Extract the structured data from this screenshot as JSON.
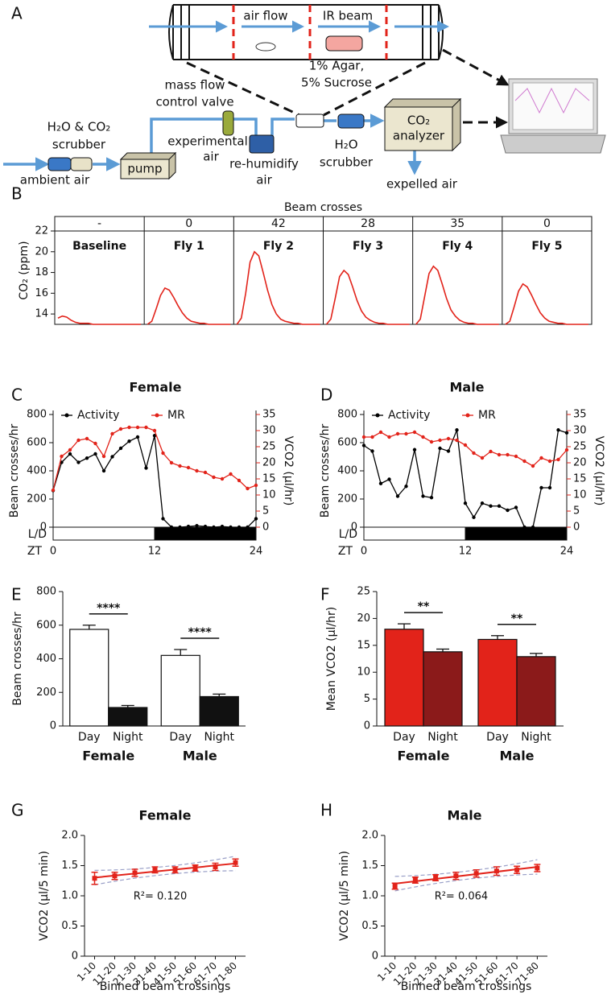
{
  "diagram": {
    "panel": "A",
    "air_flow": "air flow",
    "ir_beam": "IR beam",
    "food": [
      "1% Agar,",
      "5% Sucrose"
    ],
    "valve": [
      "mass flow",
      "control valve"
    ],
    "scrubber_in": [
      "H₂O & CO₂",
      "scrubber"
    ],
    "ambient": "ambient air",
    "pump": "pump",
    "experimental": [
      "experimental",
      "air"
    ],
    "rehumidify": [
      "re-humidify",
      "air"
    ],
    "scrubber_out": [
      "H₂O",
      "scrubber"
    ],
    "analyzer": [
      "CO₂",
      "analyzer"
    ],
    "expelled": "expelled air"
  },
  "chart_data": [
    {
      "type": "trace",
      "panel": "B",
      "header": "Beam crosses",
      "y_label": "CO₂ (ppm)",
      "color": "#e2231a",
      "ylim": [
        13,
        22
      ],
      "yticks": [
        14,
        16,
        18,
        20,
        22
      ],
      "segments": [
        {
          "name": "Baseline",
          "beam_crosses": "-",
          "values": [
            13.6,
            13.8,
            13.7,
            13.4,
            13.2,
            13.1,
            13.1,
            13.1,
            13.0,
            13.0,
            13.0,
            13.0,
            13.0,
            13.0,
            13.0,
            13.0,
            13.0,
            13.0,
            13.0,
            13.0
          ]
        },
        {
          "name": "Fly 1",
          "beam_crosses": "0",
          "values": [
            13.0,
            13.3,
            14.5,
            15.8,
            16.5,
            16.3,
            15.6,
            14.8,
            14.1,
            13.6,
            13.3,
            13.2,
            13.1,
            13.1,
            13.0,
            13.0,
            13.0,
            13.0,
            13.0,
            13.0
          ]
        },
        {
          "name": "Fly 2",
          "beam_crosses": "42",
          "values": [
            13.0,
            13.6,
            16.0,
            19.0,
            20.0,
            19.6,
            18.0,
            16.3,
            14.9,
            14.0,
            13.5,
            13.3,
            13.2,
            13.1,
            13.1,
            13.0,
            13.0,
            13.0,
            13.0,
            13.0
          ]
        },
        {
          "name": "Fly 3",
          "beam_crosses": "28",
          "values": [
            13.0,
            13.5,
            15.5,
            17.6,
            18.2,
            17.8,
            16.6,
            15.3,
            14.3,
            13.7,
            13.4,
            13.2,
            13.1,
            13.1,
            13.0,
            13.0,
            13.0,
            13.0,
            13.0,
            13.0
          ]
        },
        {
          "name": "Fly 4",
          "beam_crosses": "35",
          "values": [
            13.0,
            13.5,
            15.7,
            17.9,
            18.6,
            18.2,
            16.9,
            15.5,
            14.4,
            13.8,
            13.4,
            13.2,
            13.1,
            13.1,
            13.0,
            13.0,
            13.0,
            13.0,
            13.0,
            13.0
          ]
        },
        {
          "name": "Fly 5",
          "beam_crosses": "0",
          "values": [
            13.0,
            13.3,
            14.7,
            16.2,
            16.9,
            16.6,
            15.8,
            14.9,
            14.1,
            13.6,
            13.3,
            13.2,
            13.1,
            13.1,
            13.0,
            13.0,
            13.0,
            13.0,
            13.0,
            13.0
          ]
        }
      ]
    },
    {
      "type": "dual",
      "panel": "C",
      "title": "Female",
      "y_label": "Beam crosses/hr",
      "y2_label": "VCO2 (µl/hr)",
      "ld_label": "L/D",
      "x_label": "ZT",
      "light_dark": {
        "light": [
          0,
          12
        ],
        "dark": [
          12,
          24
        ]
      },
      "xlim": [
        0,
        24
      ],
      "xticks": [
        0,
        12,
        24
      ],
      "ylim": [
        0,
        800
      ],
      "yticks": [
        0,
        200,
        400,
        600,
        800
      ],
      "y2lim": [
        0,
        35
      ],
      "y2ticks": [
        0,
        5,
        10,
        15,
        20,
        25,
        30,
        35
      ],
      "y2_color": "#e2231a",
      "x": [
        0,
        1,
        2,
        3,
        4,
        5,
        6,
        7,
        8,
        9,
        10,
        11,
        12,
        13,
        14,
        15,
        16,
        17,
        18,
        19,
        20,
        21,
        22,
        23,
        24
      ],
      "series": [
        {
          "name": "Activity",
          "color": "#000000",
          "values": [
            260,
            460,
            520,
            460,
            490,
            520,
            400,
            500,
            560,
            610,
            640,
            420,
            650,
            60,
            0,
            0,
            5,
            10,
            5,
            0,
            5,
            0,
            0,
            0,
            60
          ]
        },
        {
          "name": "MR",
          "color": "#e2231a",
          "axis": "y2",
          "values": [
            11.5,
            22,
            24,
            27,
            27.5,
            26,
            22,
            29,
            30.5,
            31,
            31,
            31,
            30,
            23,
            20,
            19,
            18.5,
            17.5,
            17,
            15.5,
            15,
            16.5,
            14.5,
            12,
            13
          ]
        }
      ]
    },
    {
      "type": "dual",
      "panel": "D",
      "title": "Male",
      "y_label": "Beam crosses/hr",
      "y2_label": "VCO2 (µl/hr)",
      "ld_label": "L/D",
      "x_label": "ZT",
      "light_dark": {
        "light": [
          0,
          12
        ],
        "dark": [
          12,
          24
        ]
      },
      "xlim": [
        0,
        24
      ],
      "xticks": [
        0,
        12,
        24
      ],
      "ylim": [
        0,
        800
      ],
      "yticks": [
        0,
        200,
        400,
        600,
        800
      ],
      "y2lim": [
        0,
        35
      ],
      "y2ticks": [
        0,
        5,
        10,
        15,
        20,
        25,
        30,
        35
      ],
      "y2_color": "#e2231a",
      "x": [
        0,
        1,
        2,
        3,
        4,
        5,
        6,
        7,
        8,
        9,
        10,
        11,
        12,
        13,
        14,
        15,
        16,
        17,
        18,
        19,
        20,
        21,
        22,
        23,
        24
      ],
      "series": [
        {
          "name": "Activity",
          "color": "#000000",
          "values": [
            580,
            540,
            310,
            340,
            220,
            290,
            550,
            220,
            210,
            560,
            540,
            690,
            170,
            70,
            170,
            150,
            150,
            120,
            140,
            0,
            0,
            280,
            280,
            690,
            670
          ]
        },
        {
          "name": "MR",
          "color": "#e2231a",
          "axis": "y2",
          "values": [
            28,
            28,
            29.5,
            28,
            29,
            29,
            29.5,
            28,
            26.5,
            27,
            27.5,
            27,
            25.5,
            23,
            21.5,
            23.5,
            22.5,
            22.5,
            22,
            20.5,
            19,
            21.5,
            20.5,
            21,
            24
          ]
        }
      ]
    },
    {
      "type": "bar",
      "panel": "E",
      "y_label": "Beam crosses/hr",
      "categories": [
        "Female",
        "Male"
      ],
      "ylim": [
        0,
        800
      ],
      "yticks": [
        0,
        200,
        400,
        600,
        800
      ],
      "significance": [
        "****",
        "****"
      ],
      "series": [
        {
          "name": "Day",
          "color": "#ffffff",
          "values": [
            575,
            420
          ],
          "errors": [
            25,
            35
          ]
        },
        {
          "name": "Night",
          "color": "#111111",
          "values": [
            110,
            175
          ],
          "errors": [
            12,
            15
          ]
        }
      ]
    },
    {
      "type": "bar",
      "panel": "F",
      "y_label": "Mean VCO2 (µl/hr)",
      "categories": [
        "Female",
        "Male"
      ],
      "ylim": [
        0,
        25
      ],
      "yticks": [
        0,
        5,
        10,
        15,
        20,
        25
      ],
      "significance": [
        "**",
        "**"
      ],
      "series": [
        {
          "name": "Day",
          "color": "#e2231a",
          "values": [
            18,
            16.1
          ],
          "errors": [
            1,
            0.7
          ]
        },
        {
          "name": "Night",
          "color": "#8b1a1a",
          "values": [
            13.8,
            12.9
          ],
          "errors": [
            0.5,
            0.6
          ]
        }
      ]
    },
    {
      "type": "line-error",
      "panel": "G",
      "title": "Female",
      "y_label": "VCO2 (µl/5 min)",
      "x_label": "Binned beam crossings",
      "annotation": "R²= 0.120",
      "color": "#e2231a",
      "band_color": "#9aa0c8",
      "ylim": [
        0,
        2
      ],
      "yticks": [
        0,
        0.5,
        {
          "value": 1,
          "label": "1.0"
        },
        1.5,
        {
          "value": 2,
          "label": "2.0"
        }
      ],
      "categories": [
        "1-10",
        "11-20",
        "21-30",
        "31-40",
        "41-50",
        "51-60",
        "61-70",
        "71-80"
      ],
      "values": [
        1.29,
        1.33,
        1.38,
        1.43,
        1.43,
        1.46,
        1.48,
        1.55
      ],
      "errors": [
        0.1,
        0.06,
        0.06,
        0.05,
        0.05,
        0.05,
        0.06,
        0.06
      ]
    },
    {
      "type": "line-error",
      "panel": "H",
      "title": "Male",
      "y_label": "VCO2 (µl/5 min)",
      "x_label": "Binned beam crossings",
      "annotation": "R²= 0.064",
      "color": "#e2231a",
      "band_color": "#9aa0c8",
      "ylim": [
        0,
        2
      ],
      "yticks": [
        0,
        0.5,
        {
          "value": 1,
          "label": "1.0"
        },
        1.5,
        {
          "value": 2,
          "label": "2.0"
        }
      ],
      "categories": [
        "1-10",
        "11-20",
        "21-30",
        "31-40",
        "41-50",
        "51-60",
        "61-70",
        "71-80"
      ],
      "values": [
        1.16,
        1.26,
        1.3,
        1.33,
        1.37,
        1.41,
        1.43,
        1.46
      ],
      "errors": [
        0.05,
        0.05,
        0.05,
        0.06,
        0.06,
        0.07,
        0.06,
        0.06
      ]
    }
  ]
}
